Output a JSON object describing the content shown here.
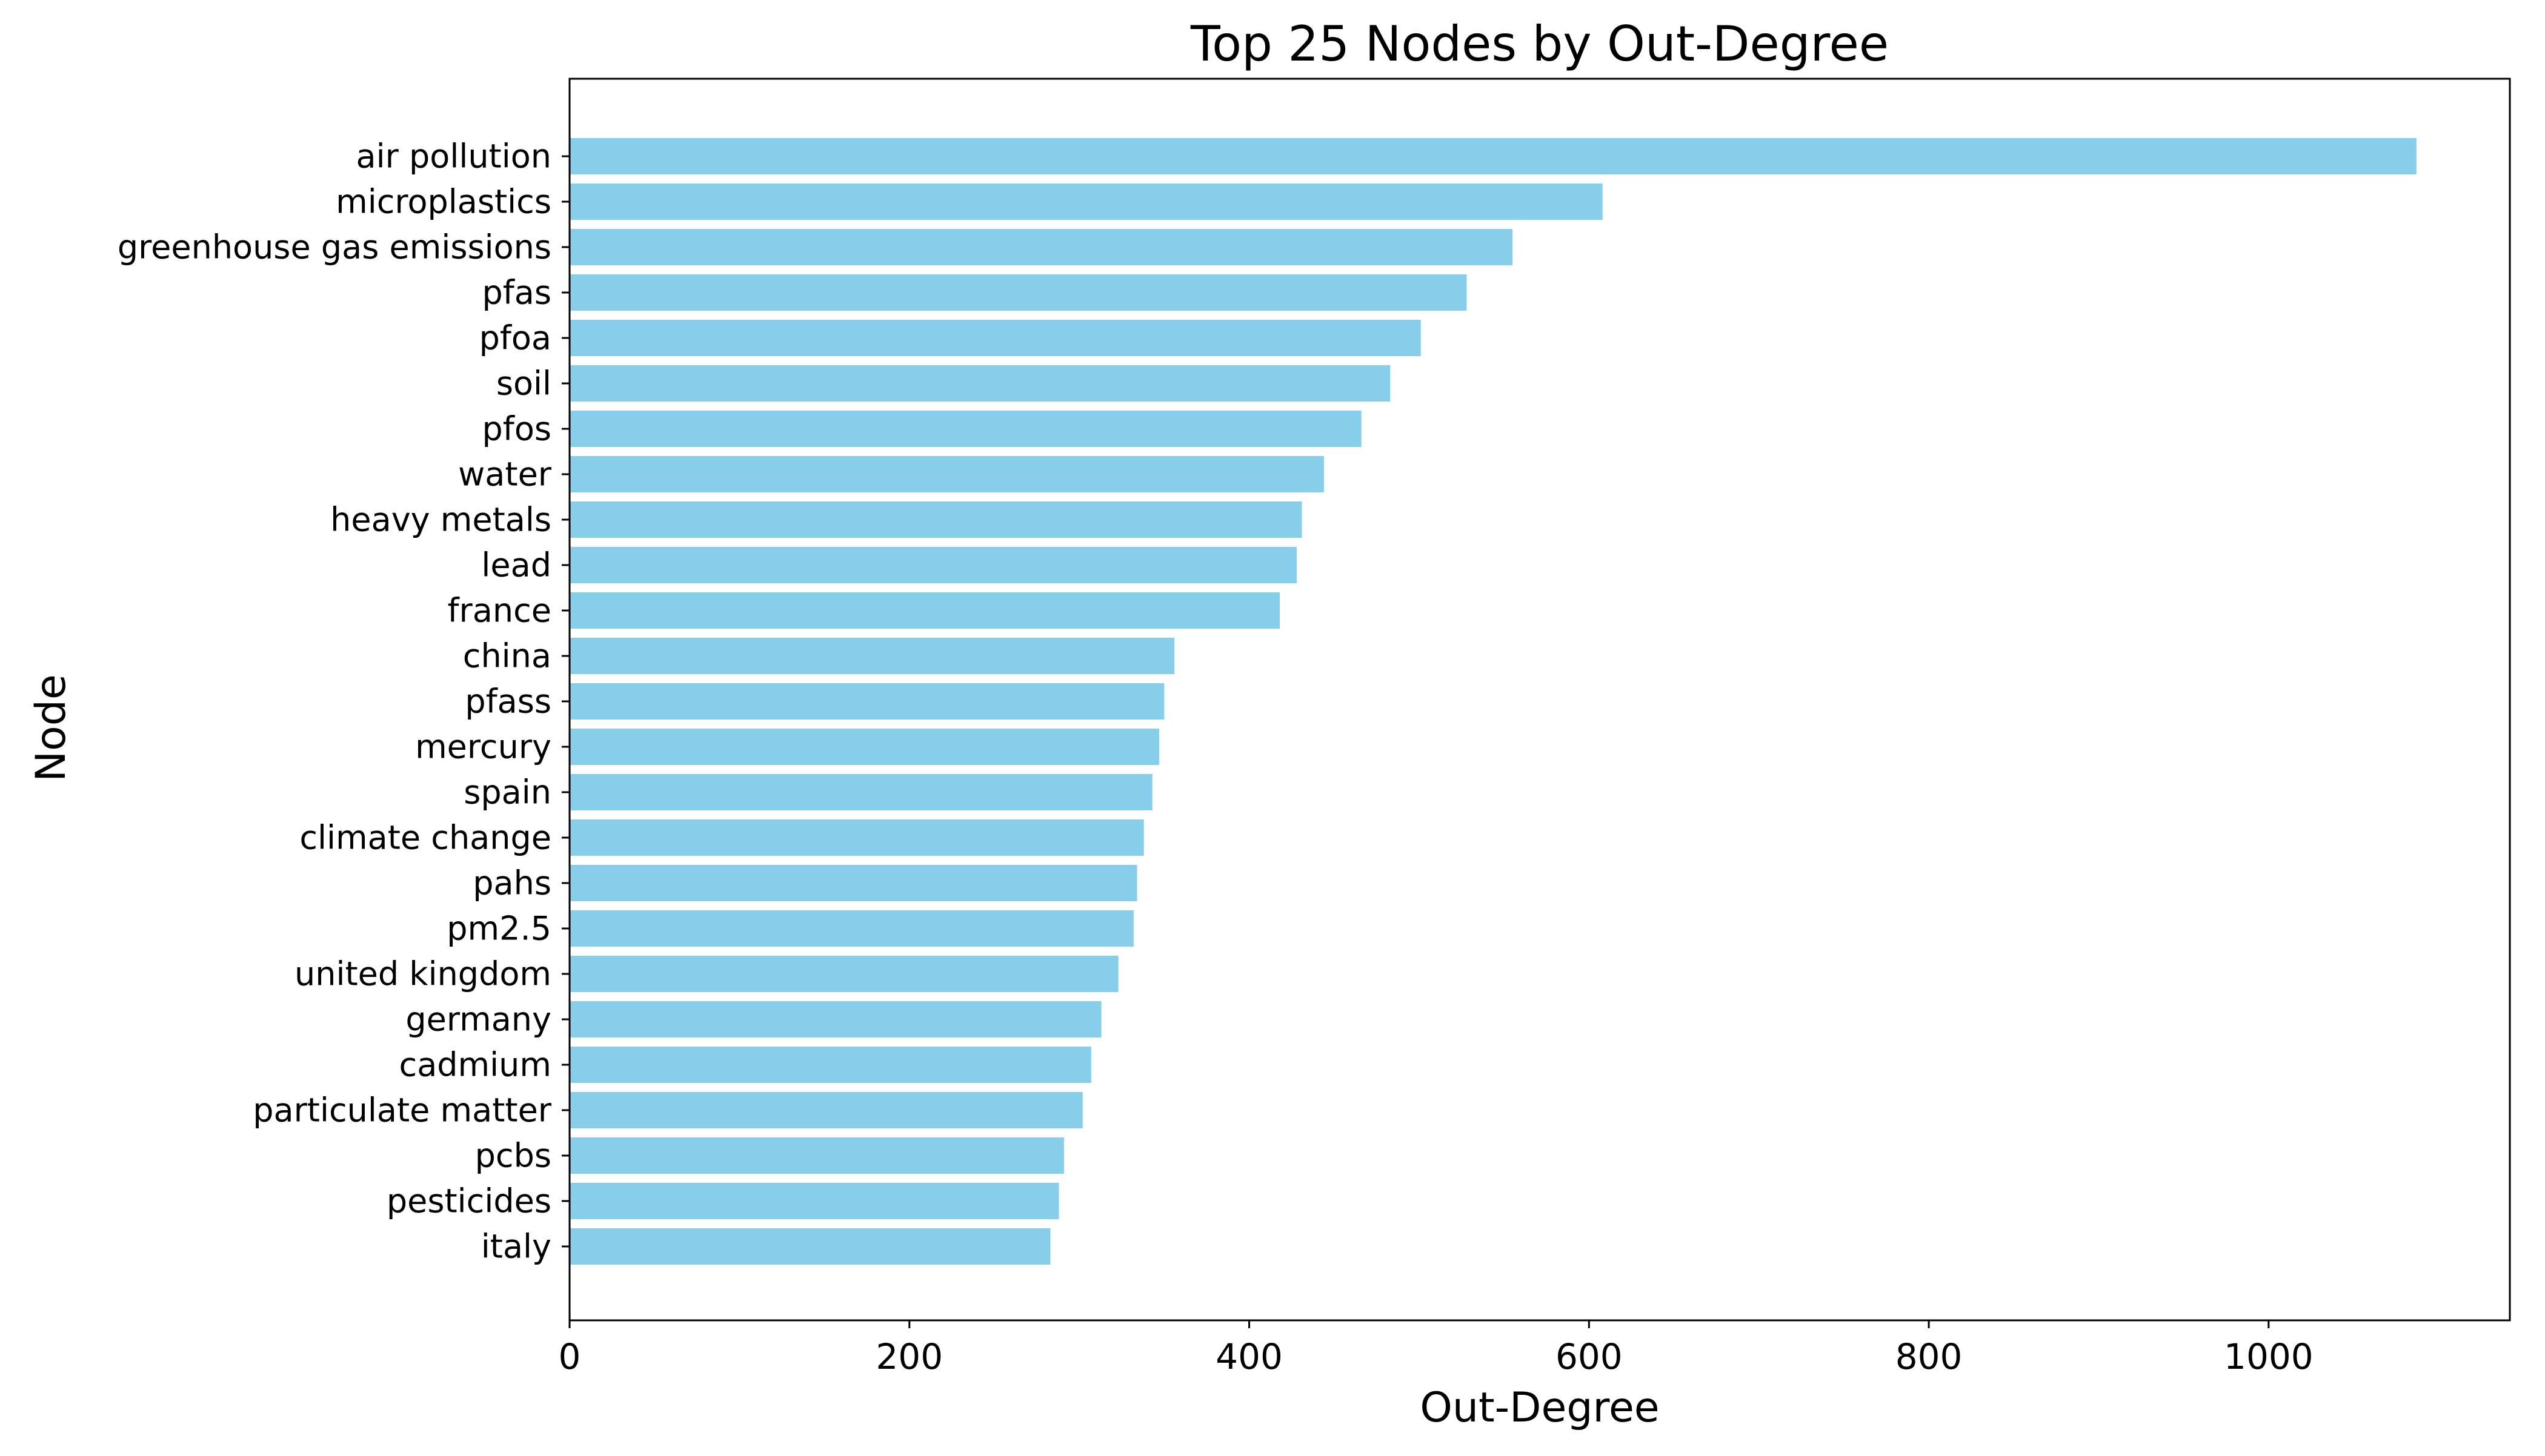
{
  "chart_data": {
    "type": "bar",
    "orientation": "horizontal",
    "title": "Top 25 Nodes by Out-Degree",
    "xlabel": "Out-Degree",
    "ylabel": "Node",
    "categories": [
      "air pollution",
      "microplastics",
      "greenhouse gas emissions",
      "pfas",
      "pfoa",
      "soil",
      "pfos",
      "water",
      "heavy metals",
      "lead",
      "france",
      "china",
      "pfass",
      "mercury",
      "spain",
      "climate change",
      "pahs",
      "pm2.5",
      "united kingdom",
      "germany",
      "cadmium",
      "particulate matter",
      "pcbs",
      "pesticides",
      "italy"
    ],
    "values": [
      1087,
      608,
      555,
      528,
      501,
      483,
      466,
      444,
      431,
      428,
      418,
      356,
      350,
      347,
      343,
      338,
      334,
      332,
      323,
      313,
      307,
      302,
      291,
      288,
      283
    ],
    "xlim": [
      0,
      1142
    ],
    "xticks": [
      0,
      200,
      400,
      600,
      800,
      1000
    ],
    "bar_color": "#87ceeb",
    "grid": false,
    "legend": "none"
  }
}
